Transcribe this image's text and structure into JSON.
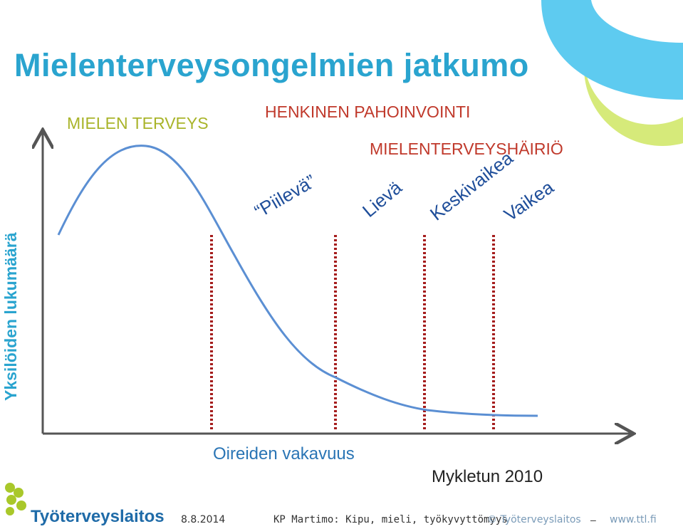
{
  "title": "Mielenterveysongelmien jatkumo",
  "categories": {
    "mental_health": "MIELEN TERVEYS",
    "distress": "HENKINEN PAHOINVOINTI",
    "disorder": "MIELENTERVEYSHÄIRIÖ"
  },
  "severity_levels": {
    "latent": "“Piilevä”",
    "mild": "Lievä",
    "moderate": "Keskivaikea",
    "severe": "Vaikea"
  },
  "axes": {
    "y_label": "Yksilöiden lukumäärä",
    "x_label": "Oireiden vakavuus"
  },
  "source": "Mykletun 2010",
  "colors": {
    "title": "#2aa4cf",
    "curve": "#5b8fd3",
    "dashed_lines": "#a51c1c",
    "mental_health": "#a9b42a",
    "distress": "#c0392b",
    "severity": "#1f4e9a"
  },
  "footer": {
    "logo_text": "Työterveyslaitos",
    "date": "8.8.2014",
    "info": "KP Martimo: Kipu, mieli, työkyvyttömyys",
    "org": "© Työterveyslaitos",
    "dash": "–",
    "url": "www.ttl.fi"
  }
}
